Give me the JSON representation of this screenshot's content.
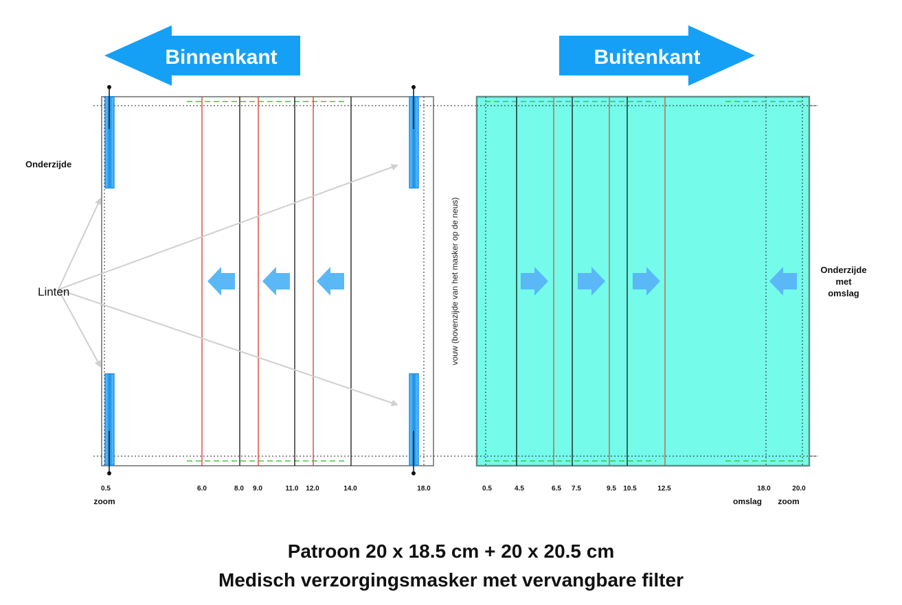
{
  "colors": {
    "arrow_blue": "#15a0f5",
    "small_arrow_blue": "#5ab8f7",
    "ribbon_blue": "#2e9ae8",
    "teal_fill": "#74fbe9",
    "frame_gray": "#909090",
    "red_line": "#e0322a",
    "green_dash": "#45c341",
    "guide_gray": "#c8c8c8"
  },
  "header": {
    "left_arrow_label": "Binnenkant",
    "right_arrow_label": "Buitenkant"
  },
  "left_panel": {
    "side_label": "Onderzijde",
    "ties_label": "Linten",
    "fold_label": "vouw (bovenzijde van het masker op de neus)",
    "ticks": [
      "0.5",
      "6.0",
      "8.0",
      "9.0",
      "11.0",
      "12.0",
      "14.0",
      "18.0"
    ],
    "sub_label_zoom": "zoom",
    "lines": [
      {
        "at": 6.0,
        "color": "red"
      },
      {
        "at": 8.0,
        "color": "black"
      },
      {
        "at": 9.0,
        "color": "red"
      },
      {
        "at": 11.0,
        "color": "black"
      },
      {
        "at": 12.0,
        "color": "red"
      },
      {
        "at": 14.0,
        "color": "black"
      }
    ],
    "fold_direction_arrows": [
      "left",
      "left",
      "left"
    ]
  },
  "right_panel": {
    "side_label": [
      "Onderzijde",
      "met",
      "omslag"
    ],
    "ticks": [
      "0.5",
      "4.5",
      "6.5",
      "7.5",
      "9.5",
      "10.5",
      "12.5",
      "18.0",
      "20.0"
    ],
    "sub_label_omslag": "omslag",
    "sub_label_zoom": "zoom",
    "lines": [
      {
        "at": 4.5,
        "color": "black"
      },
      {
        "at": 6.5,
        "color": "red"
      },
      {
        "at": 7.5,
        "color": "black"
      },
      {
        "at": 9.5,
        "color": "red"
      },
      {
        "at": 10.5,
        "color": "black"
      },
      {
        "at": 12.5,
        "color": "red"
      }
    ],
    "fold_direction_arrows": [
      "right",
      "right",
      "right",
      "left"
    ]
  },
  "footer": {
    "title_line1": "Patroon 20 x 18.5 cm + 20 x 20.5 cm",
    "title_line2": "Medisch verzorgingsmasker met vervangbare filter"
  }
}
